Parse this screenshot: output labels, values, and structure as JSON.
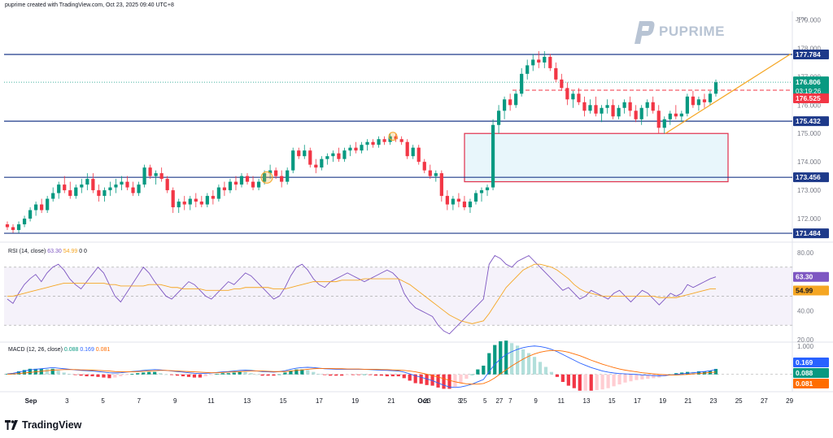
{
  "header": {
    "text": "puprime created with TradingView.com, Oct 23, 2025 09:40 UTC+8"
  },
  "brand": {
    "name": "PUPRIME",
    "color": "#b8c4d4"
  },
  "footer": {
    "logo_text": "TradingView"
  },
  "price_panel": {
    "currency": "JPY",
    "ticks": [
      "179.000",
      "178.000",
      "177.000",
      "176.000",
      "175.000",
      "174.000",
      "173.000",
      "172.000"
    ],
    "tick_values": [
      179,
      178,
      177,
      176,
      175,
      174,
      173,
      172
    ],
    "levels": [
      {
        "label": "177.784",
        "value": 177.784
      },
      {
        "label": "175.432",
        "value": 175.432
      },
      {
        "label": "173.456",
        "value": 173.456
      },
      {
        "label": "171.484",
        "value": 171.484
      }
    ],
    "current_price": {
      "label": "176.806",
      "value": 176.806,
      "countdown": "03:19:26"
    },
    "prev_level": {
      "label": "176.525",
      "value": 176.525
    },
    "level_color": "#1e3a8a",
    "up_color": "#089981",
    "down_color": "#f23645"
  },
  "rsi": {
    "label": "RSI (14, close)",
    "values_text": [
      "63.30",
      "54.99",
      "0",
      "0"
    ],
    "ticks": [
      "80.00",
      "40.00",
      "20.00"
    ],
    "badges": [
      {
        "label": "63.30",
        "color": "#7e57c2"
      },
      {
        "label": "54.99",
        "color": "#f5a623"
      }
    ]
  },
  "macd": {
    "label": "MACD (12, 26, close)",
    "values_text": [
      "0.088",
      "0.169",
      "0.081"
    ],
    "ticks": [
      "1.000"
    ],
    "badges": [
      {
        "label": "0.169",
        "color": "#2962ff"
      },
      {
        "label": "0.088",
        "color": "#089981"
      },
      {
        "label": "0.081",
        "color": "#ff6d00"
      }
    ]
  },
  "xaxis": {
    "labels": [
      "Sep",
      "3",
      "5",
      "7",
      "9",
      "11",
      "13",
      "15",
      "17",
      "19",
      "21",
      "23",
      "25",
      "27",
      "Oct",
      "3",
      "5",
      "7",
      "9",
      "11",
      "13",
      "15",
      "17",
      "19",
      "21",
      "23",
      "25",
      "27",
      "29"
    ]
  },
  "chart_data": {
    "type": "candlestick",
    "ylim": [
      171.2,
      179.3
    ],
    "candles": [
      [
        171.8,
        171.9,
        171.6,
        171.7
      ],
      [
        171.7,
        171.8,
        171.5,
        171.6
      ],
      [
        171.6,
        171.9,
        171.5,
        171.8
      ],
      [
        171.8,
        172.1,
        171.7,
        172.0
      ],
      [
        172.0,
        172.4,
        171.9,
        172.3
      ],
      [
        172.3,
        172.6,
        172.1,
        172.5
      ],
      [
        172.5,
        172.7,
        172.2,
        172.3
      ],
      [
        172.3,
        172.8,
        172.2,
        172.7
      ],
      [
        172.7,
        173.1,
        172.6,
        172.9
      ],
      [
        172.9,
        173.3,
        172.7,
        173.2
      ],
      [
        173.2,
        173.5,
        172.9,
        173.0
      ],
      [
        173.0,
        173.3,
        172.7,
        172.8
      ],
      [
        172.8,
        173.2,
        172.7,
        173.1
      ],
      [
        173.1,
        173.4,
        172.9,
        173.2
      ],
      [
        173.2,
        173.6,
        173.0,
        173.4
      ],
      [
        173.4,
        173.6,
        172.9,
        173.0
      ],
      [
        173.0,
        173.2,
        172.6,
        172.8
      ],
      [
        172.8,
        173.1,
        172.6,
        173.0
      ],
      [
        173.0,
        173.3,
        172.8,
        173.1
      ],
      [
        173.1,
        173.4,
        172.9,
        173.2
      ],
      [
        173.2,
        173.5,
        173.0,
        173.3
      ],
      [
        173.3,
        173.5,
        173.0,
        173.1
      ],
      [
        173.1,
        173.3,
        172.8,
        172.9
      ],
      [
        172.9,
        173.3,
        172.8,
        173.2
      ],
      [
        173.2,
        173.9,
        173.1,
        173.8
      ],
      [
        173.8,
        173.9,
        173.4,
        173.5
      ],
      [
        173.5,
        173.7,
        173.2,
        173.6
      ],
      [
        173.6,
        173.8,
        173.3,
        173.4
      ],
      [
        173.4,
        173.5,
        172.9,
        173.0
      ],
      [
        173.0,
        173.1,
        172.2,
        172.4
      ],
      [
        172.4,
        172.7,
        172.2,
        172.6
      ],
      [
        172.6,
        172.8,
        172.3,
        172.5
      ],
      [
        172.5,
        172.8,
        172.3,
        172.7
      ],
      [
        172.7,
        172.9,
        172.4,
        172.6
      ],
      [
        172.6,
        172.8,
        172.4,
        172.5
      ],
      [
        172.5,
        172.9,
        172.4,
        172.8
      ],
      [
        172.8,
        173.0,
        172.5,
        172.7
      ],
      [
        172.7,
        173.2,
        172.6,
        173.1
      ],
      [
        173.1,
        173.3,
        172.8,
        173.0
      ],
      [
        173.0,
        173.4,
        172.9,
        173.3
      ],
      [
        173.3,
        173.5,
        173.0,
        173.2
      ],
      [
        173.2,
        173.6,
        173.1,
        173.5
      ],
      [
        173.5,
        173.6,
        173.2,
        173.3
      ],
      [
        173.3,
        173.5,
        173.0,
        173.1
      ],
      [
        173.1,
        173.4,
        173.0,
        173.3
      ],
      [
        173.3,
        173.7,
        173.2,
        173.6
      ],
      [
        173.6,
        173.9,
        173.4,
        173.7
      ],
      [
        173.7,
        173.8,
        173.4,
        173.5
      ],
      [
        173.5,
        173.7,
        173.1,
        173.3
      ],
      [
        173.3,
        173.8,
        173.2,
        173.7
      ],
      [
        173.7,
        174.5,
        173.6,
        174.4
      ],
      [
        174.4,
        174.5,
        174.1,
        174.2
      ],
      [
        174.2,
        174.6,
        174.1,
        174.4
      ],
      [
        174.4,
        174.5,
        173.8,
        173.9
      ],
      [
        173.9,
        174.1,
        173.6,
        173.8
      ],
      [
        173.8,
        174.2,
        173.7,
        174.1
      ],
      [
        174.1,
        174.3,
        173.9,
        174.2
      ],
      [
        174.2,
        174.4,
        174.0,
        174.3
      ],
      [
        174.3,
        174.5,
        174.0,
        174.1
      ],
      [
        174.1,
        174.5,
        174.0,
        174.4
      ],
      [
        174.4,
        174.6,
        174.2,
        174.5
      ],
      [
        174.5,
        174.7,
        174.3,
        174.4
      ],
      [
        174.4,
        174.7,
        174.3,
        174.6
      ],
      [
        174.6,
        174.8,
        174.4,
        174.7
      ],
      [
        174.7,
        174.8,
        174.5,
        174.6
      ],
      [
        174.6,
        174.9,
        174.5,
        174.8
      ],
      [
        174.8,
        174.9,
        174.6,
        174.7
      ],
      [
        174.7,
        175.0,
        174.6,
        174.9
      ],
      [
        174.9,
        175.0,
        174.7,
        174.8
      ],
      [
        174.8,
        174.9,
        174.6,
        174.7
      ],
      [
        174.7,
        174.8,
        174.1,
        174.2
      ],
      [
        174.2,
        174.6,
        174.1,
        174.5
      ],
      [
        174.5,
        174.6,
        173.9,
        174.0
      ],
      [
        174.0,
        174.1,
        173.6,
        173.7
      ],
      [
        173.7,
        173.9,
        173.4,
        173.5
      ],
      [
        173.5,
        173.7,
        173.3,
        173.6
      ],
      [
        173.6,
        173.7,
        172.6,
        172.8
      ],
      [
        172.8,
        173.0,
        172.3,
        172.5
      ],
      [
        172.5,
        172.8,
        172.3,
        172.7
      ],
      [
        172.7,
        172.9,
        172.4,
        172.6
      ],
      [
        172.6,
        172.8,
        172.3,
        172.4
      ],
      [
        172.4,
        172.7,
        172.2,
        172.6
      ],
      [
        172.6,
        173.0,
        172.5,
        172.9
      ],
      [
        172.9,
        173.1,
        172.6,
        173.0
      ],
      [
        173.0,
        173.2,
        172.8,
        173.1
      ],
      [
        173.1,
        175.5,
        173.0,
        175.3
      ],
      [
        175.3,
        176.0,
        175.0,
        175.8
      ],
      [
        175.8,
        176.3,
        175.5,
        176.2
      ],
      [
        176.2,
        176.4,
        175.8,
        176.0
      ],
      [
        176.0,
        176.5,
        175.9,
        176.4
      ],
      [
        176.4,
        177.3,
        176.3,
        177.1
      ],
      [
        177.1,
        177.6,
        176.9,
        177.4
      ],
      [
        177.4,
        177.8,
        177.2,
        177.6
      ],
      [
        177.6,
        177.9,
        177.3,
        177.5
      ],
      [
        177.5,
        177.9,
        177.3,
        177.7
      ],
      [
        177.7,
        177.8,
        177.2,
        177.3
      ],
      [
        177.3,
        177.5,
        176.8,
        176.9
      ],
      [
        176.9,
        177.1,
        176.5,
        176.6
      ],
      [
        176.6,
        176.8,
        176.0,
        176.2
      ],
      [
        176.2,
        176.5,
        175.9,
        176.4
      ],
      [
        176.4,
        176.6,
        176.0,
        176.1
      ],
      [
        176.1,
        176.3,
        175.6,
        175.8
      ],
      [
        175.8,
        176.2,
        175.7,
        176.0
      ],
      [
        176.0,
        176.3,
        175.6,
        175.7
      ],
      [
        175.7,
        176.0,
        175.4,
        175.9
      ],
      [
        175.9,
        176.2,
        175.7,
        176.0
      ],
      [
        176.0,
        176.2,
        175.5,
        175.6
      ],
      [
        175.6,
        176.0,
        175.5,
        175.9
      ],
      [
        175.9,
        176.2,
        175.7,
        176.1
      ],
      [
        176.1,
        176.3,
        175.6,
        175.8
      ],
      [
        175.8,
        176.0,
        175.4,
        175.5
      ],
      [
        175.5,
        176.0,
        175.3,
        175.9
      ],
      [
        175.9,
        176.2,
        175.6,
        176.1
      ],
      [
        176.1,
        176.3,
        175.7,
        175.8
      ],
      [
        175.8,
        176.0,
        175.0,
        175.2
      ],
      [
        175.2,
        175.6,
        175.0,
        175.5
      ],
      [
        175.5,
        175.8,
        175.3,
        175.7
      ],
      [
        175.7,
        176.0,
        175.5,
        175.6
      ],
      [
        175.6,
        175.8,
        175.4,
        175.7
      ],
      [
        175.7,
        176.4,
        175.6,
        176.3
      ],
      [
        176.3,
        176.5,
        175.9,
        176.0
      ],
      [
        176.0,
        176.3,
        175.8,
        176.2
      ],
      [
        176.2,
        176.4,
        175.9,
        176.1
      ],
      [
        176.1,
        176.5,
        176.0,
        176.4
      ],
      [
        176.4,
        176.9,
        176.3,
        176.8
      ]
    ],
    "level_lines": [
      177.784,
      175.432,
      173.456,
      171.484
    ],
    "dashed_level": 176.525,
    "rect_zone": {
      "y_top": 175.0,
      "y_bottom": 173.3
    },
    "trendline": {
      "from": 175.0,
      "to": 177.8
    },
    "rsi_series": [
      48,
      45,
      52,
      58,
      62,
      65,
      60,
      66,
      70,
      72,
      68,
      62,
      58,
      55,
      60,
      65,
      70,
      66,
      58,
      50,
      46,
      52,
      58,
      64,
      70,
      66,
      60,
      55,
      50,
      48,
      52,
      56,
      60,
      58,
      54,
      50,
      48,
      52,
      56,
      60,
      58,
      62,
      66,
      64,
      60,
      56,
      52,
      48,
      50,
      56,
      64,
      70,
      72,
      68,
      62,
      58,
      56,
      60,
      62,
      64,
      66,
      64,
      62,
      60,
      62,
      64,
      66,
      68,
      66,
      62,
      52,
      46,
      42,
      40,
      38,
      36,
      30,
      26,
      24,
      28,
      32,
      36,
      40,
      44,
      48,
      72,
      78,
      76,
      72,
      70,
      74,
      76,
      78,
      74,
      70,
      66,
      62,
      58,
      54,
      56,
      52,
      48,
      50,
      54,
      52,
      50,
      48,
      52,
      54,
      50,
      46,
      50,
      54,
      52,
      48,
      44,
      48,
      52,
      50,
      52,
      58,
      56,
      58,
      60,
      62,
      63.3
    ],
    "rsi_ma": [
      50,
      50,
      51,
      52,
      53,
      54,
      55,
      56,
      57,
      58,
      59,
      59,
      59,
      59,
      59,
      59,
      59,
      59,
      58,
      58,
      57,
      57,
      57,
      57,
      57,
      58,
      58,
      58,
      57,
      56,
      56,
      55,
      55,
      55,
      55,
      54,
      54,
      54,
      54,
      54,
      55,
      55,
      56,
      56,
      56,
      56,
      56,
      55,
      55,
      55,
      56,
      57,
      58,
      59,
      60,
      60,
      60,
      60,
      60,
      61,
      61,
      61,
      61,
      62,
      62,
      62,
      62,
      62,
      62,
      62,
      60,
      58,
      55,
      52,
      49,
      46,
      43,
      40,
      37,
      35,
      33,
      32,
      31,
      32,
      33,
      38,
      44,
      50,
      56,
      60,
      64,
      68,
      70,
      72,
      72,
      71,
      70,
      68,
      65,
      62,
      58,
      55,
      53,
      52,
      51,
      50,
      50,
      50,
      50,
      50,
      50,
      50,
      50,
      50,
      50,
      49,
      49,
      49,
      49,
      50,
      51,
      52,
      53,
      54,
      55,
      55
    ],
    "macd_series": [
      0.02,
      0.04,
      0.08,
      0.12,
      0.16,
      0.18,
      0.2,
      0.22,
      0.24,
      0.22,
      0.2,
      0.18,
      0.16,
      0.14,
      0.13,
      0.12,
      0.1,
      0.08,
      0.06,
      0.05,
      0.06,
      0.08,
      0.1,
      0.12,
      0.14,
      0.16,
      0.17,
      0.16,
      0.14,
      0.12,
      0.1,
      0.08,
      0.06,
      0.04,
      0.03,
      0.04,
      0.05,
      0.07,
      0.09,
      0.1,
      0.12,
      0.14,
      0.15,
      0.14,
      0.12,
      0.1,
      0.09,
      0.08,
      0.1,
      0.13,
      0.18,
      0.22,
      0.24,
      0.25,
      0.24,
      0.22,
      0.2,
      0.19,
      0.18,
      0.18,
      0.18,
      0.18,
      0.18,
      0.18,
      0.17,
      0.16,
      0.15,
      0.14,
      0.13,
      0.12,
      0.08,
      0.02,
      -0.05,
      -0.1,
      -0.16,
      -0.22,
      -0.3,
      -0.38,
      -0.44,
      -0.46,
      -0.44,
      -0.4,
      -0.34,
      -0.26,
      -0.18,
      0.1,
      0.35,
      0.55,
      0.7,
      0.8,
      0.88,
      0.94,
      0.98,
      1.0,
      0.98,
      0.94,
      0.88,
      0.8,
      0.7,
      0.6,
      0.5,
      0.4,
      0.32,
      0.24,
      0.18,
      0.12,
      0.08,
      0.05,
      0.03,
      0.02,
      0.01,
      0.0,
      -0.02,
      -0.03,
      -0.04,
      -0.05,
      -0.04,
      -0.02,
      0.0,
      0.02,
      0.04,
      0.06,
      0.08,
      0.1,
      0.13,
      0.169
    ],
    "signal_series": [
      0.01,
      0.02,
      0.03,
      0.05,
      0.07,
      0.09,
      0.11,
      0.13,
      0.15,
      0.16,
      0.17,
      0.17,
      0.17,
      0.16,
      0.16,
      0.15,
      0.14,
      0.13,
      0.12,
      0.1,
      0.09,
      0.09,
      0.09,
      0.1,
      0.11,
      0.12,
      0.13,
      0.14,
      0.14,
      0.13,
      0.12,
      0.11,
      0.1,
      0.09,
      0.08,
      0.07,
      0.06,
      0.06,
      0.07,
      0.08,
      0.09,
      0.1,
      0.11,
      0.12,
      0.12,
      0.12,
      0.11,
      0.1,
      0.1,
      0.1,
      0.12,
      0.14,
      0.16,
      0.18,
      0.2,
      0.21,
      0.21,
      0.21,
      0.2,
      0.2,
      0.19,
      0.19,
      0.19,
      0.18,
      0.18,
      0.18,
      0.17,
      0.17,
      0.16,
      0.15,
      0.14,
      0.12,
      0.09,
      0.05,
      0.01,
      -0.04,
      -0.09,
      -0.15,
      -0.21,
      -0.26,
      -0.3,
      -0.33,
      -0.34,
      -0.34,
      -0.32,
      -0.24,
      -0.12,
      0.02,
      0.16,
      0.3,
      0.42,
      0.54,
      0.64,
      0.72,
      0.78,
      0.82,
      0.84,
      0.84,
      0.82,
      0.78,
      0.72,
      0.66,
      0.58,
      0.5,
      0.43,
      0.36,
      0.3,
      0.24,
      0.19,
      0.15,
      0.12,
      0.09,
      0.06,
      0.04,
      0.02,
      0.0,
      -0.01,
      -0.02,
      -0.02,
      -0.01,
      0.0,
      0.02,
      0.03,
      0.05,
      0.07,
      0.081
    ]
  }
}
